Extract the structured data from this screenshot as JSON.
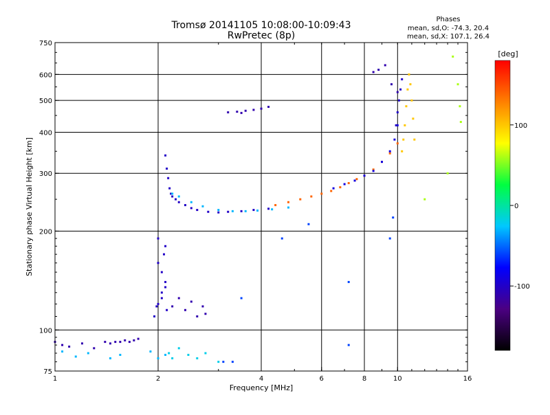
{
  "chart_data": {
    "type": "scatter",
    "title": "Tromsø 20141105 10:08:00-10:09:43",
    "subtitle": "RwPretec (8p)",
    "xlabel": "Frequency [MHz]",
    "ylabel": "Stationary phase Virtual Height [km]",
    "x_scale": "log",
    "y_scale": "log",
    "xlim": [
      1,
      16
    ],
    "ylim": [
      75,
      750
    ],
    "x_ticks": [
      {
        "value": 1,
        "label": "1"
      },
      {
        "value": 2,
        "label": "2"
      },
      {
        "value": 4,
        "label": "4"
      },
      {
        "value": 6,
        "label": "6"
      },
      {
        "value": 8,
        "label": "8"
      },
      {
        "value": 10,
        "label": "10"
      },
      {
        "value": 16,
        "label": "16"
      }
    ],
    "y_ticks": [
      {
        "value": 75,
        "label": "75"
      },
      {
        "value": 100,
        "label": "100"
      },
      {
        "value": 200,
        "label": "200"
      },
      {
        "value": 300,
        "label": "300"
      },
      {
        "value": 400,
        "label": "400"
      },
      {
        "value": 500,
        "label": "500"
      },
      {
        "value": 600,
        "label": "600"
      },
      {
        "value": 750,
        "label": "750"
      }
    ],
    "grid_x": [
      2,
      4,
      6,
      8,
      10
    ],
    "grid_y": [
      100,
      200,
      300,
      400,
      500,
      600
    ],
    "legend": {
      "title": "Phases",
      "lines": [
        "mean, sd,O: -74.3, 20.4",
        "mean, sd,X: 107.1, 26.4"
      ],
      "placement": "top-right"
    },
    "colorbar": {
      "label": "[deg]",
      "range": [
        -180,
        180
      ],
      "ticks": [
        {
          "value": 100,
          "label": "100"
        },
        {
          "value": 0,
          "label": "0"
        },
        {
          "value": -100,
          "label": "-100"
        }
      ],
      "colormap": [
        "#000000",
        "#4b0082",
        "#0000ff",
        "#00c8ff",
        "#00ff40",
        "#ffff00",
        "#ff8000",
        "#ff0000"
      ]
    },
    "series": [
      {
        "x": [
          1.0,
          1.05,
          1.1,
          1.2,
          1.3,
          1.4,
          1.45,
          1.5,
          1.55,
          1.6,
          1.65,
          1.7,
          1.75
        ],
        "y": [
          92,
          90,
          89,
          91,
          88,
          92,
          91,
          92,
          92,
          93,
          92,
          93,
          94
        ],
        "phase": -110
      },
      {
        "x": [
          1.05,
          1.15,
          1.25,
          1.45,
          1.55,
          1.9,
          2.0,
          2.1
        ],
        "y": [
          86,
          83,
          85,
          82,
          84,
          86,
          82,
          84
        ],
        "phase": -30
      },
      {
        "x": [
          1.95,
          2.0,
          2.05,
          2.1,
          2.05,
          2.0,
          2.08,
          2.1,
          2.0,
          2.05,
          2.12,
          1.98,
          2.1
        ],
        "y": [
          110,
          120,
          130,
          140,
          150,
          160,
          170,
          180,
          190,
          125,
          115,
          118,
          135
        ],
        "phase": -100
      },
      {
        "x": [
          2.2,
          2.3,
          2.4,
          2.5,
          2.6,
          2.7,
          2.75
        ],
        "y": [
          118,
          125,
          115,
          122,
          110,
          118,
          112
        ],
        "phase": -110
      },
      {
        "x": [
          2.15,
          2.2,
          2.3,
          2.45,
          2.6,
          2.75,
          3.0
        ],
        "y": [
          85,
          82,
          88,
          84,
          82,
          85,
          80
        ],
        "phase": -20
      },
      {
        "x": [
          2.1,
          2.12,
          2.14,
          2.16,
          2.18,
          2.2,
          2.25,
          2.3,
          2.4,
          2.5,
          2.6,
          2.8,
          3.0,
          3.2,
          3.5,
          3.8,
          4.2
        ],
        "y": [
          340,
          310,
          290,
          270,
          260,
          255,
          250,
          245,
          240,
          235,
          232,
          229,
          228,
          229,
          230,
          232,
          234
        ],
        "phase": -100
      },
      {
        "x": [
          2.2,
          2.3,
          2.5,
          2.7,
          3.0,
          3.3,
          3.6,
          3.9,
          4.3,
          4.8
        ],
        "y": [
          260,
          255,
          245,
          238,
          232,
          230,
          230,
          231,
          233,
          236
        ],
        "phase": -30
      },
      {
        "x": [
          3.2,
          3.4,
          3.5,
          3.6,
          3.8,
          4.0,
          4.2
        ],
        "y": [
          460,
          462,
          458,
          465,
          468,
          472,
          478
        ],
        "phase": -110
      },
      {
        "x": [
          4.4,
          4.8,
          5.2,
          5.6,
          6.0,
          6.4,
          6.8,
          7.2,
          7.6,
          8.0,
          8.5,
          9.0,
          9.5,
          10.0
        ],
        "y": [
          240,
          245,
          250,
          255,
          260,
          265,
          272,
          280,
          288,
          295,
          308,
          325,
          345,
          370
        ],
        "phase": 140
      },
      {
        "x": [
          6.5,
          7.0,
          7.5,
          8.0,
          8.5,
          9.0,
          9.5,
          9.8,
          10.0
        ],
        "y": [
          270,
          278,
          285,
          295,
          305,
          325,
          350,
          380,
          420
        ],
        "phase": -90
      },
      {
        "x": [
          10.3,
          10.4,
          10.5,
          10.6,
          10.7,
          10.8,
          10.9,
          11.0,
          11.1,
          11.2
        ],
        "y": [
          350,
          380,
          420,
          480,
          540,
          600,
          560,
          500,
          440,
          380
        ],
        "phase": 100
      },
      {
        "x": [
          9.9,
          10.0,
          10.1,
          10.2,
          10.3
        ],
        "y": [
          420,
          460,
          500,
          540,
          580
        ],
        "phase": -100
      },
      {
        "x": [
          8.5,
          8.8,
          9.2,
          9.6,
          10.0
        ],
        "y": [
          610,
          620,
          640,
          560,
          530
        ],
        "phase": -110
      },
      {
        "x": [
          12.0,
          14.0,
          14.5,
          15.0,
          15.2,
          15.3
        ],
        "y": [
          250,
          300,
          680,
          560,
          480,
          430
        ],
        "phase": 60
      },
      {
        "x": [
          3.5,
          4.6,
          5.5,
          7.2,
          7.2,
          9.5,
          9.7,
          3.1,
          3.3
        ],
        "y": [
          125,
          190,
          210,
          140,
          90,
          190,
          220,
          80,
          80
        ],
        "phase": -60
      }
    ]
  }
}
